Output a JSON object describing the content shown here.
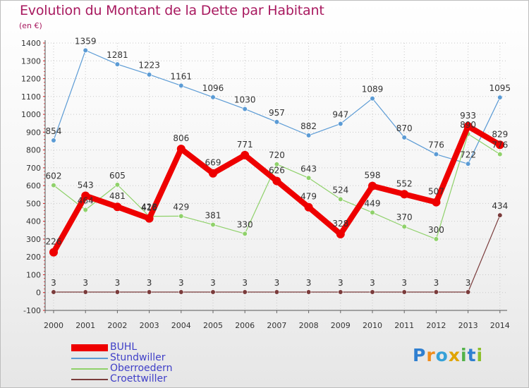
{
  "chart_data": {
    "type": "line",
    "title": "Evolution du Montant de la Dette par Habitant",
    "subtitle": "(en €)",
    "x": [
      "2000",
      "2001",
      "2002",
      "2003",
      "2004",
      "2005",
      "2006",
      "2007",
      "2008",
      "2009",
      "2010",
      "2011",
      "2012",
      "2013",
      "2014"
    ],
    "ylim": [
      -100,
      1400
    ],
    "yticks": [
      -100,
      0,
      100,
      200,
      300,
      400,
      500,
      600,
      700,
      800,
      900,
      1000,
      1100,
      1200,
      1300,
      1400
    ],
    "grid": true,
    "legend_position": "bottom-left",
    "series": [
      {
        "name": "BUHL",
        "color": "#ee0000",
        "values": [
          226,
          543,
          481,
          416,
          806,
          669,
          771,
          626,
          479,
          328,
          598,
          552,
          507,
          933,
          829
        ],
        "labels": [
          "226",
          "543",
          "481",
          "416",
          "806",
          "669",
          "771",
          "626",
          "479",
          "328",
          "598",
          "552",
          "507",
          "933",
          "829"
        ]
      },
      {
        "name": "Stundwiller",
        "color": "#5b9bd5",
        "values": [
          854,
          1359,
          1281,
          1223,
          1161,
          1096,
          1030,
          957,
          882,
          947,
          1089,
          870,
          776,
          722,
          1095
        ],
        "labels": [
          "854",
          "1359",
          "1281",
          "1223",
          "1161",
          "1096",
          "1030",
          "957",
          "882",
          "947",
          "1089",
          "870",
          "776",
          "722",
          "1095"
        ]
      },
      {
        "name": "Oberroedern",
        "color": "#8fd16a",
        "values": [
          602,
          464,
          605,
          428,
          429,
          381,
          330,
          720,
          643,
          524,
          449,
          370,
          300,
          890,
          776
        ],
        "labels": [
          "602",
          "464",
          "605",
          "428",
          "429",
          "381",
          "330",
          "720",
          "643",
          "524",
          "449",
          "370",
          "300",
          "890",
          "776"
        ]
      },
      {
        "name": "Croettwiller",
        "color": "#7a3b3b",
        "values": [
          3,
          3,
          3,
          3,
          3,
          3,
          3,
          3,
          3,
          3,
          3,
          3,
          3,
          3,
          434
        ],
        "labels": [
          "3",
          "3",
          "3",
          "3",
          "3",
          "3",
          "3",
          "3",
          "3",
          "3",
          "3",
          "3",
          "3",
          "3",
          "434"
        ]
      }
    ]
  },
  "logo": {
    "p": "P",
    "r": "r",
    "o": "o",
    "x": "x",
    "i1": "i",
    "t": "t",
    "i2": "i"
  }
}
